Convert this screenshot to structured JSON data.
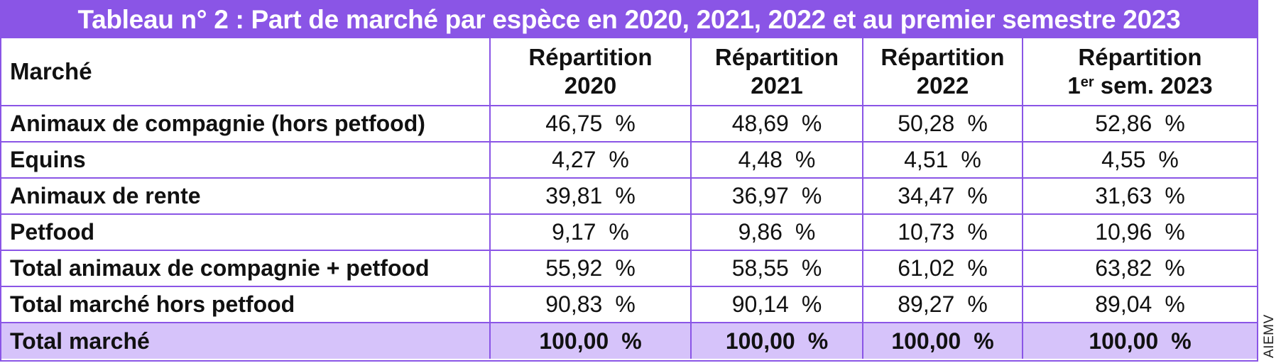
{
  "title": "Tableau n° 2 : Part de marché par espèce en 2020, 2021, 2022 et au premier semestre 2023",
  "headers": {
    "market": "Marché",
    "col2020": {
      "line1": "Répartition",
      "line2": "2020"
    },
    "col2021": {
      "line1": "Répartition",
      "line2": "2021"
    },
    "col2022": {
      "line1": "Répartition",
      "line2": "2022"
    },
    "col2023": {
      "line1": "Répartition",
      "sup_prefix": "1",
      "sup": "er",
      "line2": " sem. 2023"
    }
  },
  "percent_sign": "%",
  "rows": [
    {
      "label": "Animaux de compagnie (hors petfood)",
      "v2020": "46,75",
      "v2021": "48,69",
      "v2022": "50,28",
      "v2023": "52,86"
    },
    {
      "label": "Equins",
      "v2020": "4,27",
      "v2021": "4,48",
      "v2022": "4,51",
      "v2023": "4,55"
    },
    {
      "label": "Animaux de rente",
      "v2020": "39,81",
      "v2021": "36,97",
      "v2022": "34,47",
      "v2023": "31,63"
    },
    {
      "label": "Petfood",
      "v2020": "9,17",
      "v2021": "9,86",
      "v2022": "10,73",
      "v2023": "10,96"
    },
    {
      "label": "Total animaux de compagnie + petfood",
      "v2020": "55,92",
      "v2021": "58,55",
      "v2022": "61,02",
      "v2023": "63,82"
    },
    {
      "label": "Total marché hors petfood",
      "v2020": "90,83",
      "v2021": "90,14",
      "v2022": "89,27",
      "v2023": "89,04"
    },
    {
      "label": "Total marché",
      "v2020": "100,00",
      "v2021": "100,00",
      "v2022": "100,00",
      "v2023": "100,00"
    }
  ],
  "colors": {
    "accent": "#8a55e6",
    "total_row_bg": "#d6c3fa"
  },
  "credit": "AIEMV"
}
